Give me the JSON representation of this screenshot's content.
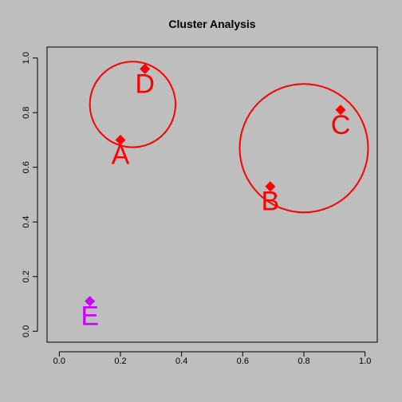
{
  "chart_data": {
    "type": "scatter",
    "title": "Cluster Analysis",
    "xlabel": "",
    "ylabel": "",
    "xlim": [
      -0.04,
      1.04
    ],
    "ylim": [
      -0.04,
      1.04
    ],
    "xticks": [
      "0.0",
      "0.2",
      "0.4",
      "0.6",
      "0.8",
      "1.0"
    ],
    "yticks": [
      "0.0",
      "0.2",
      "0.4",
      "0.6",
      "0.8",
      "1.0"
    ],
    "grid": false,
    "marker": "diamond",
    "points": [
      {
        "label": "A",
        "x": 0.2,
        "y": 0.7,
        "color": "#ff0000"
      },
      {
        "label": "B",
        "x": 0.69,
        "y": 0.53,
        "color": "#ff0000"
      },
      {
        "label": "C",
        "x": 0.92,
        "y": 0.81,
        "color": "#ff0000"
      },
      {
        "label": "D",
        "x": 0.28,
        "y": 0.96,
        "color": "#ff0000"
      },
      {
        "label": "E",
        "x": 0.1,
        "y": 0.11,
        "color": "#cc00ff"
      }
    ],
    "clusters": [
      {
        "cx": 0.24,
        "cy": 0.83,
        "r": 0.14,
        "color": "#ff0000"
      },
      {
        "cx": 0.8,
        "cy": 0.67,
        "r": 0.21,
        "color": "#ff0000"
      }
    ]
  }
}
